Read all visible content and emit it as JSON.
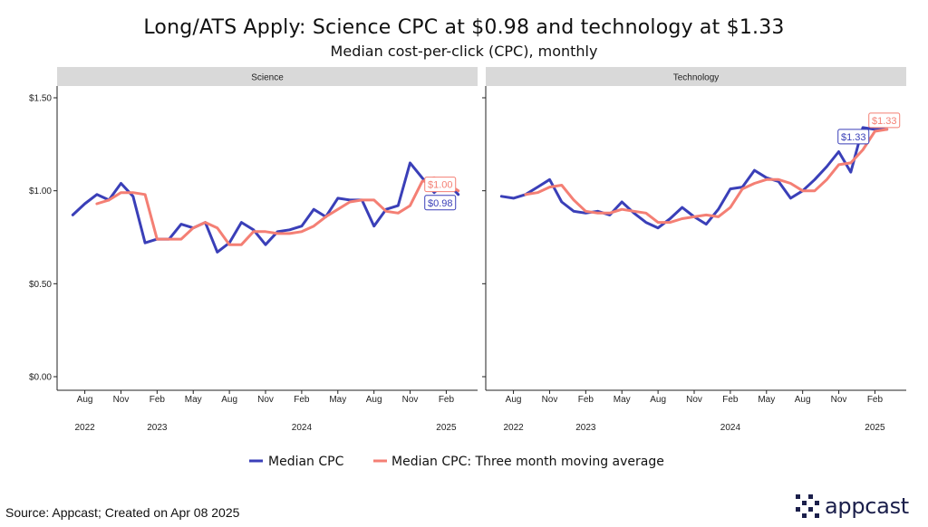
{
  "title": "Long/ATS Apply: Science CPC at $0.98 and technology at $1.33",
  "subtitle": "Median cost-per-click (CPC), monthly",
  "source": "Source: Appcast; Created on Apr 08 2025",
  "logo_text": "appcast",
  "colors": {
    "median": "#3a3fb8",
    "moving_avg": "#f47f74",
    "strip": "#d9d9d9",
    "logo": "#1b1f4b"
  },
  "chart_data": [
    {
      "type": "line",
      "facet": "Science",
      "ylim": [
        0,
        1.5
      ],
      "yticks": [
        0,
        0.5,
        1.0,
        1.5
      ],
      "ytick_labels": [
        "$0.00",
        "$0.50",
        "$1.00",
        "$1.50"
      ],
      "x_month_labels": [
        "Aug",
        "Nov",
        "Feb",
        "May",
        "Aug",
        "Nov",
        "Feb",
        "May",
        "Aug",
        "Nov",
        "Feb"
      ],
      "x_year_labels": [
        "2022",
        "2023",
        "2024",
        "2025"
      ],
      "x": [
        "2022-07",
        "2022-08",
        "2022-09",
        "2022-10",
        "2022-11",
        "2022-12",
        "2023-01",
        "2023-02",
        "2023-03",
        "2023-04",
        "2023-05",
        "2023-06",
        "2023-07",
        "2023-08",
        "2023-09",
        "2023-10",
        "2023-11",
        "2023-12",
        "2024-01",
        "2024-02",
        "2024-03",
        "2024-04",
        "2024-05",
        "2024-06",
        "2024-07",
        "2024-08",
        "2024-09",
        "2024-10",
        "2024-11",
        "2024-12",
        "2025-01",
        "2025-02",
        "2025-03"
      ],
      "series": [
        {
          "name": "Median CPC",
          "values": [
            0.87,
            0.93,
            0.98,
            0.95,
            1.04,
            0.97,
            0.72,
            0.74,
            0.74,
            0.82,
            0.8,
            0.83,
            0.67,
            0.72,
            0.83,
            0.79,
            0.71,
            0.78,
            0.79,
            0.81,
            0.9,
            0.86,
            0.96,
            0.95,
            0.95,
            0.81,
            0.9,
            0.92,
            1.15,
            1.07,
            0.99,
            1.05,
            0.98
          ]
        },
        {
          "name": "Median CPC: Three month moving average",
          "values": [
            null,
            null,
            0.93,
            0.95,
            0.99,
            0.99,
            0.98,
            0.74,
            0.74,
            0.74,
            0.8,
            0.83,
            0.8,
            0.71,
            0.71,
            0.78,
            0.78,
            0.77,
            0.77,
            0.78,
            0.81,
            0.86,
            0.9,
            0.94,
            0.95,
            0.95,
            0.89,
            0.88,
            0.92,
            1.05,
            1.07,
            1.04,
            1.0
          ]
        }
      ],
      "end_labels": [
        "$1.00",
        "$0.98"
      ]
    },
    {
      "type": "line",
      "facet": "Technology",
      "ylim": [
        0,
        1.5
      ],
      "yticks": [
        0,
        0.5,
        1.0,
        1.5
      ],
      "ytick_labels": [
        "$0.00",
        "$0.50",
        "$1.00",
        "$1.50"
      ],
      "x_month_labels": [
        "Aug",
        "Nov",
        "Feb",
        "May",
        "Aug",
        "Nov",
        "Feb",
        "May",
        "Aug",
        "Nov",
        "Feb"
      ],
      "x_year_labels": [
        "2022",
        "2023",
        "2024",
        "2025"
      ],
      "x": [
        "2022-07",
        "2022-08",
        "2022-09",
        "2022-10",
        "2022-11",
        "2022-12",
        "2023-01",
        "2023-02",
        "2023-03",
        "2023-04",
        "2023-05",
        "2023-06",
        "2023-07",
        "2023-08",
        "2023-09",
        "2023-10",
        "2023-11",
        "2023-12",
        "2024-01",
        "2024-02",
        "2024-03",
        "2024-04",
        "2024-05",
        "2024-06",
        "2024-07",
        "2024-08",
        "2024-09",
        "2024-10",
        "2024-11",
        "2024-12",
        "2025-01",
        "2025-02",
        "2025-03"
      ],
      "series": [
        {
          "name": "Median CPC",
          "values": [
            0.97,
            0.96,
            0.98,
            1.02,
            1.06,
            0.94,
            0.89,
            0.88,
            0.89,
            0.87,
            0.94,
            0.88,
            0.83,
            0.8,
            0.85,
            0.91,
            0.86,
            0.82,
            0.9,
            1.01,
            1.02,
            1.11,
            1.07,
            1.05,
            0.96,
            1.0,
            1.06,
            1.13,
            1.21,
            1.1,
            1.34,
            1.33,
            1.33
          ]
        },
        {
          "name": "Median CPC: Three month moving average",
          "values": [
            null,
            null,
            0.98,
            0.99,
            1.02,
            1.03,
            0.95,
            0.89,
            0.88,
            0.88,
            0.9,
            0.89,
            0.88,
            0.83,
            0.83,
            0.85,
            0.86,
            0.87,
            0.86,
            0.91,
            1.01,
            1.04,
            1.06,
            1.06,
            1.04,
            1.0,
            1.0,
            1.06,
            1.14,
            1.15,
            1.22,
            1.32,
            1.33
          ]
        }
      ],
      "end_labels": [
        "$1.33",
        "$1.33"
      ]
    }
  ],
  "legend": {
    "position": "bottom"
  }
}
